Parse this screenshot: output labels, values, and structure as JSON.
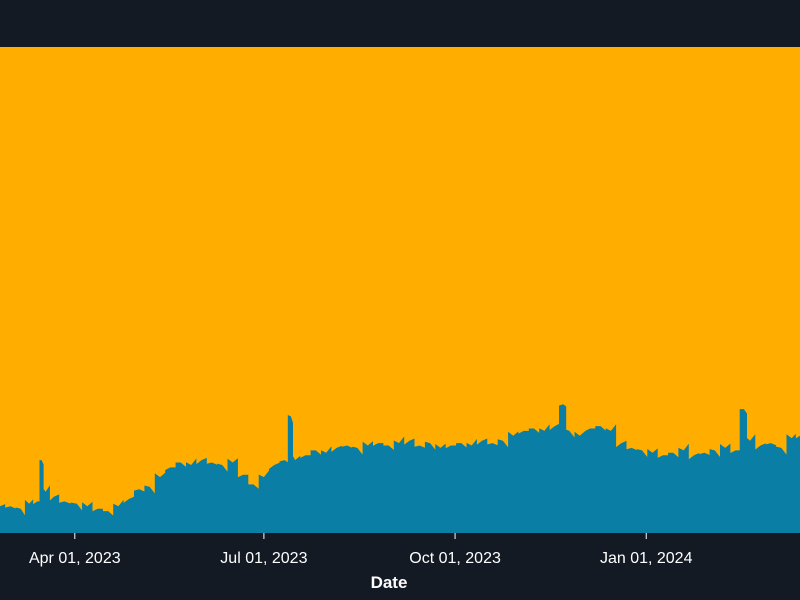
{
  "chart_data": {
    "type": "area",
    "stacked": true,
    "normalized": true,
    "title": "",
    "xlabel": "Date",
    "ylabel": "",
    "x_range": [
      "2023-02-24",
      "2024-03-15"
    ],
    "ylim": [
      0,
      1
    ],
    "grid": false,
    "legend": "none",
    "x_ticks": [
      {
        "date": "2023-04-01",
        "label": "Apr 01, 2023"
      },
      {
        "date": "2023-07-01",
        "label": "Jul 01, 2023"
      },
      {
        "date": "2023-10-01",
        "label": "Oct 01, 2023"
      },
      {
        "date": "2024-01-01",
        "label": "Jan 01, 2024"
      }
    ],
    "series": [
      {
        "color": "#0a7ea4",
        "points": [
          [
            "2023-02-24",
            0.055
          ],
          [
            "2023-03-01",
            0.055
          ],
          [
            "2023-03-06",
            0.05
          ],
          [
            "2023-03-10",
            0.06
          ],
          [
            "2023-03-14",
            0.065
          ],
          [
            "2023-03-16",
            0.15
          ],
          [
            "2023-03-18",
            0.085
          ],
          [
            "2023-03-22",
            0.075
          ],
          [
            "2023-03-27",
            0.065
          ],
          [
            "2023-04-02",
            0.06
          ],
          [
            "2023-04-07",
            0.055
          ],
          [
            "2023-04-12",
            0.05
          ],
          [
            "2023-04-17",
            0.045
          ],
          [
            "2023-04-22",
            0.055
          ],
          [
            "2023-04-27",
            0.07
          ],
          [
            "2023-05-02",
            0.09
          ],
          [
            "2023-05-07",
            0.095
          ],
          [
            "2023-05-12",
            0.115
          ],
          [
            "2023-05-17",
            0.135
          ],
          [
            "2023-05-22",
            0.145
          ],
          [
            "2023-05-27",
            0.14
          ],
          [
            "2023-06-01",
            0.15
          ],
          [
            "2023-06-06",
            0.145
          ],
          [
            "2023-06-11",
            0.14
          ],
          [
            "2023-06-16",
            0.145
          ],
          [
            "2023-06-21",
            0.12
          ],
          [
            "2023-06-26",
            0.1
          ],
          [
            "2023-07-01",
            0.115
          ],
          [
            "2023-07-06",
            0.14
          ],
          [
            "2023-07-11",
            0.15
          ],
          [
            "2023-07-14",
            0.24
          ],
          [
            "2023-07-16",
            0.15
          ],
          [
            "2023-07-21",
            0.16
          ],
          [
            "2023-07-26",
            0.17
          ],
          [
            "2023-07-31",
            0.165
          ],
          [
            "2023-08-05",
            0.175
          ],
          [
            "2023-08-10",
            0.18
          ],
          [
            "2023-08-15",
            0.175
          ],
          [
            "2023-08-20",
            0.18
          ],
          [
            "2023-08-25",
            0.185
          ],
          [
            "2023-08-30",
            0.18
          ],
          [
            "2023-09-04",
            0.185
          ],
          [
            "2023-09-09",
            0.19
          ],
          [
            "2023-09-14",
            0.18
          ],
          [
            "2023-09-19",
            0.185
          ],
          [
            "2023-09-24",
            0.175
          ],
          [
            "2023-09-29",
            0.18
          ],
          [
            "2023-10-04",
            0.185
          ],
          [
            "2023-10-09",
            0.18
          ],
          [
            "2023-10-14",
            0.19
          ],
          [
            "2023-10-19",
            0.185
          ],
          [
            "2023-10-24",
            0.19
          ],
          [
            "2023-10-29",
            0.2
          ],
          [
            "2023-11-03",
            0.21
          ],
          [
            "2023-11-08",
            0.215
          ],
          [
            "2023-11-13",
            0.21
          ],
          [
            "2023-11-18",
            0.22
          ],
          [
            "2023-11-22",
            0.265
          ],
          [
            "2023-11-25",
            0.21
          ],
          [
            "2023-11-30",
            0.2
          ],
          [
            "2023-12-05",
            0.215
          ],
          [
            "2023-12-10",
            0.22
          ],
          [
            "2023-12-15",
            0.21
          ],
          [
            "2023-12-20",
            0.185
          ],
          [
            "2023-12-25",
            0.175
          ],
          [
            "2023-12-30",
            0.17
          ],
          [
            "2024-01-04",
            0.165
          ],
          [
            "2024-01-09",
            0.16
          ],
          [
            "2024-01-14",
            0.165
          ],
          [
            "2024-01-19",
            0.17
          ],
          [
            "2024-01-24",
            0.16
          ],
          [
            "2024-01-29",
            0.165
          ],
          [
            "2024-02-03",
            0.17
          ],
          [
            "2024-02-08",
            0.175
          ],
          [
            "2024-02-13",
            0.17
          ],
          [
            "2024-02-17",
            0.255
          ],
          [
            "2024-02-20",
            0.19
          ],
          [
            "2024-02-25",
            0.18
          ],
          [
            "2024-03-01",
            0.185
          ],
          [
            "2024-03-06",
            0.175
          ],
          [
            "2024-03-11",
            0.195
          ],
          [
            "2024-03-15",
            0.2
          ]
        ]
      },
      {
        "color": "#ffae00",
        "fill": "remainder"
      }
    ]
  }
}
